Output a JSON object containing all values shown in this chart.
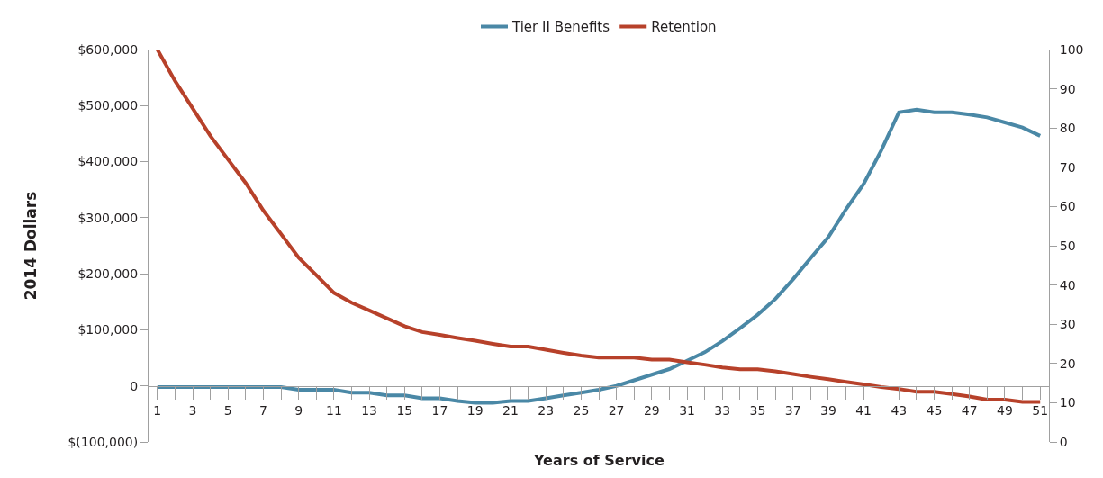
{
  "chart_data": {
    "type": "line",
    "xlabel": "Years of Service",
    "ylabel": "2014 Dollars",
    "x": [
      1,
      2,
      3,
      4,
      5,
      6,
      7,
      8,
      9,
      10,
      11,
      12,
      13,
      14,
      15,
      16,
      17,
      18,
      19,
      20,
      21,
      22,
      23,
      24,
      25,
      26,
      27,
      28,
      29,
      30,
      31,
      32,
      33,
      34,
      35,
      36,
      37,
      38,
      39,
      40,
      41,
      42,
      43,
      44,
      45,
      46,
      47,
      48,
      49,
      50,
      51
    ],
    "series": [
      {
        "name": "Tier II Benefits",
        "color": "#4a88a6",
        "values": [
          -2000,
          -2000,
          -2000,
          -2000,
          -2000,
          -2000,
          -2000,
          -2000,
          -7000,
          -7000,
          -7000,
          -12000,
          -12000,
          -17000,
          -17000,
          -22000,
          -22000,
          -27000,
          -30000,
          -30000,
          -27000,
          -27000,
          -22000,
          -17000,
          -12000,
          -7000,
          0,
          10000,
          20000,
          30000,
          45000,
          60000,
          80000,
          103000,
          127000,
          155000,
          190000,
          228000,
          265000,
          315000,
          360000,
          420000,
          488000,
          493000,
          488000,
          488000,
          484000,
          479000,
          470000,
          461000,
          446000
        ]
      },
      {
        "name": "Retention",
        "color": "#b7412a",
        "axis": "y2",
        "values": [
          100,
          92,
          85,
          78,
          72,
          66,
          59,
          53,
          47,
          42.5,
          38,
          35.5,
          33.5,
          31.5,
          29.5,
          28,
          27.3,
          26.5,
          25.8,
          25,
          24.3,
          24.3,
          23.5,
          22.7,
          22,
          21.5,
          21.5,
          21.5,
          21,
          21,
          20.3,
          19.7,
          19,
          18.5,
          18.5,
          18,
          17.3,
          16.6,
          16,
          15.3,
          14.7,
          14,
          13.5,
          12.8,
          12.8,
          12.2,
          11.6,
          10.8,
          10.8,
          10.2,
          10.2
        ]
      }
    ],
    "xlim": [
      0.5,
      51.5
    ],
    "xticks": [
      1,
      {
        "value": 2,
        "label": null
      },
      3,
      {
        "value": 4,
        "label": null
      },
      5,
      {
        "value": 6,
        "label": null
      },
      7,
      {
        "value": 8,
        "label": null
      },
      9,
      {
        "value": 10,
        "label": null
      },
      11,
      {
        "value": 12,
        "label": null
      },
      13,
      {
        "value": 14,
        "label": null
      },
      15,
      {
        "value": 16,
        "label": null
      },
      17,
      {
        "value": 18,
        "label": null
      },
      19,
      {
        "value": 20,
        "label": null
      },
      21,
      {
        "value": 22,
        "label": null
      },
      23,
      {
        "value": 24,
        "label": null
      },
      25,
      {
        "value": 26,
        "label": null
      },
      27,
      {
        "value": 28,
        "label": null
      },
      29,
      {
        "value": 30,
        "label": null
      },
      31,
      {
        "value": 32,
        "label": null
      },
      33,
      {
        "value": 34,
        "label": null
      },
      35,
      {
        "value": 36,
        "label": null
      },
      37,
      {
        "value": 38,
        "label": null
      },
      39,
      {
        "value": 40,
        "label": null
      },
      41,
      {
        "value": 42,
        "label": null
      },
      43,
      {
        "value": 44,
        "label": null
      },
      45,
      {
        "value": 46,
        "label": null
      },
      47,
      {
        "value": 48,
        "label": null
      },
      49,
      {
        "value": 50,
        "label": null
      },
      51
    ],
    "ylim": [
      -100000,
      600000
    ],
    "yticks": [
      {
        "value": -100000,
        "label": "$(100,000)"
      },
      0,
      {
        "value": 100000,
        "label": "$100,000"
      },
      {
        "value": 200000,
        "label": "$200,000"
      },
      {
        "value": 300000,
        "label": "$300,000"
      },
      {
        "value": 400000,
        "label": "$400,000"
      },
      {
        "value": 500000,
        "label": "$500,000"
      },
      {
        "value": 600000,
        "label": "$600,000"
      }
    ],
    "y2lim": [
      0,
      100
    ],
    "y2ticks": [
      0,
      10,
      20,
      30,
      40,
      50,
      60,
      70,
      80,
      90,
      100
    ],
    "grid": false,
    "legend": "top",
    "marker": "none",
    "line_style": "solid"
  }
}
